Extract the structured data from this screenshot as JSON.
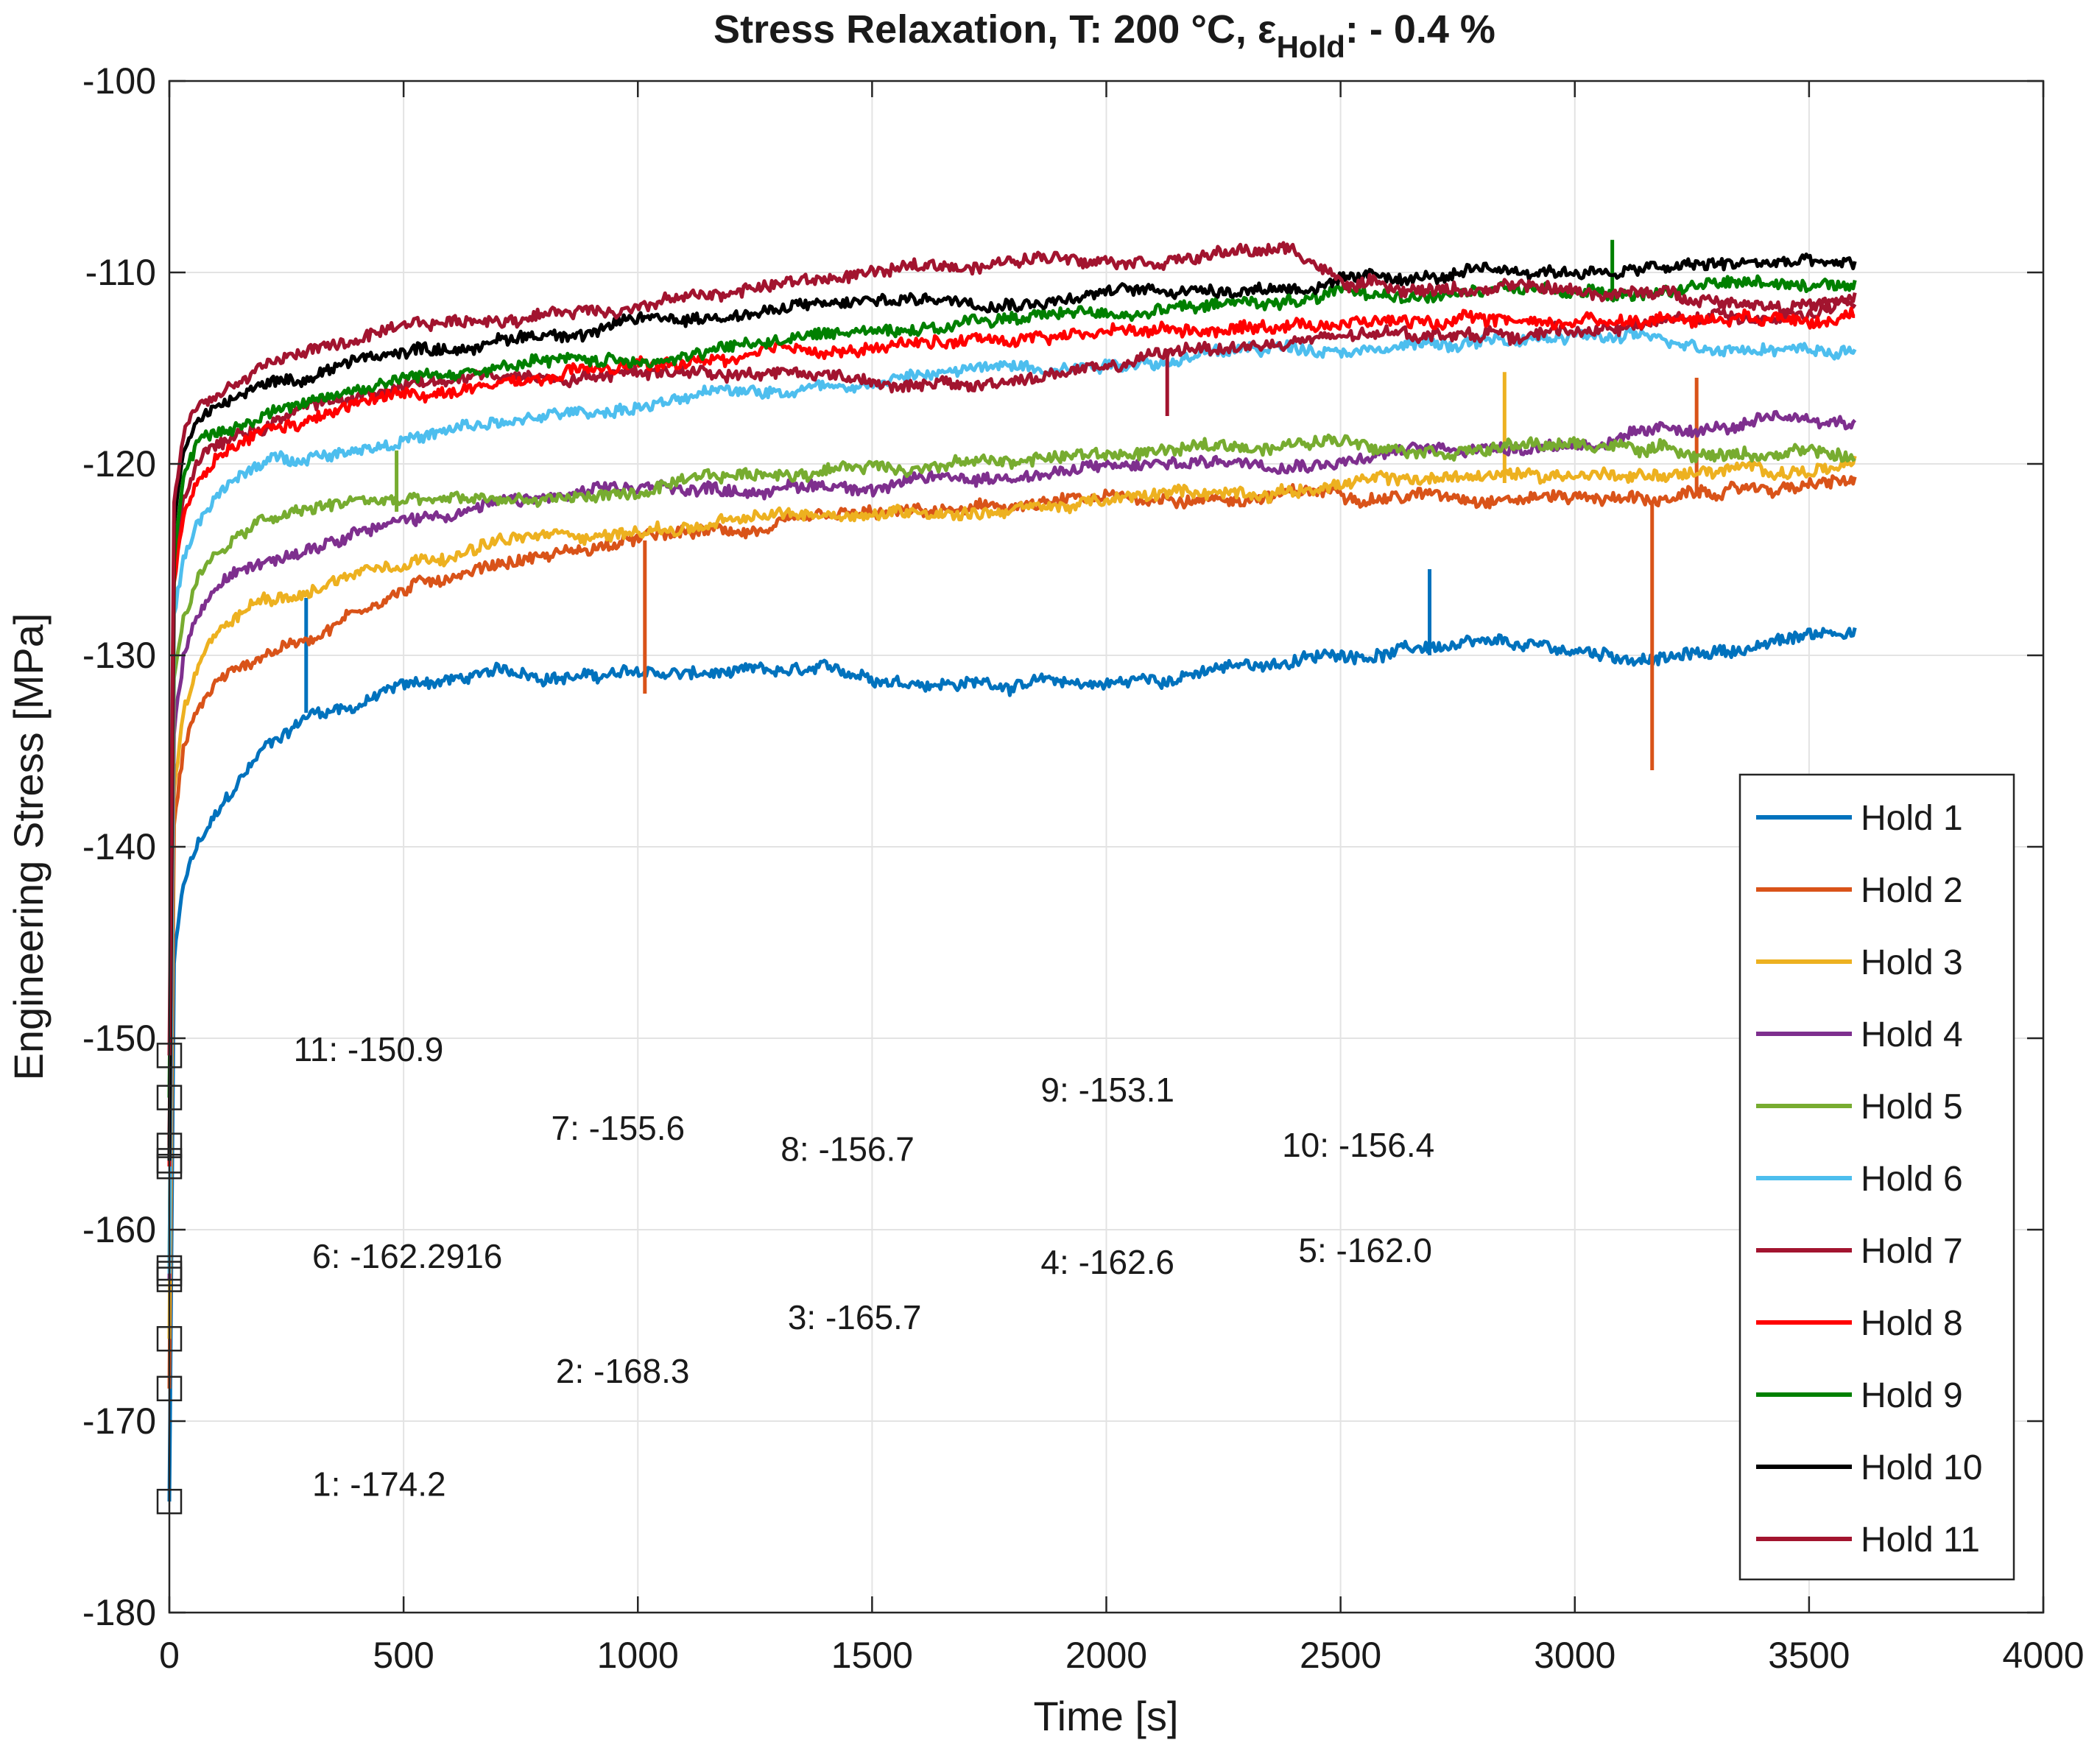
{
  "chart_data": {
    "type": "line",
    "title_main": "Stress Relaxation, T: 200 °C, ε",
    "title_sub": "Hold",
    "title_suffix": ": - 0.4 %",
    "xlabel": "Time [s]",
    "ylabel": "Engineering Stress [MPa]",
    "xlim": [
      0,
      4000
    ],
    "ylim": [
      -180,
      -100
    ],
    "xticks": [
      "0",
      "500",
      "1000",
      "1500",
      "2000",
      "2500",
      "3000",
      "3500",
      "4000"
    ],
    "yticks": [
      "-180",
      "-170",
      "-160",
      "-150",
      "-140",
      "-130",
      "-120",
      "-110",
      "-100"
    ],
    "grid": true,
    "legend_position": "bottom-right",
    "series": [
      {
        "name": "Hold 1",
        "color": "#0072BD",
        "start": -174.2,
        "x": [
          0,
          10,
          30,
          60,
          100,
          200,
          300,
          400,
          500,
          700,
          1000,
          1500,
          2000,
          2500,
          2700,
          3000,
          3200,
          3400,
          3600
        ],
        "y": [
          -174.2,
          -146,
          -142,
          -140,
          -138.5,
          -135,
          -133,
          -132.5,
          -131.5,
          -131,
          -131,
          -131.2,
          -131.5,
          -130,
          -129.5,
          -130,
          -130.2,
          -129.5,
          -128.5
        ],
        "spikes": [
          [
            292,
            -127,
            -133
          ],
          [
            2690,
            -125.5,
            -130
          ]
        ]
      },
      {
        "name": "Hold 2",
        "color": "#D95319",
        "start": -168.3,
        "x": [
          0,
          10,
          30,
          60,
          100,
          200,
          300,
          400,
          500,
          700,
          1000,
          1500,
          2000,
          2500,
          3000,
          3200,
          3400,
          3600
        ],
        "y": [
          -168.3,
          -139,
          -135,
          -133,
          -131.5,
          -130,
          -129,
          -127.5,
          -126.5,
          -125,
          -124,
          -123,
          -122,
          -121.5,
          -121.5,
          -121.8,
          -121.3,
          -121
        ],
        "spikes": [
          [
            1015,
            -124,
            -132
          ],
          [
            3165,
            -122,
            -136
          ],
          [
            3260,
            -115.5,
            -121.5
          ]
        ]
      },
      {
        "name": "Hold 3",
        "color": "#EDB120",
        "start": -165.7,
        "x": [
          0,
          10,
          30,
          60,
          100,
          200,
          300,
          400,
          500,
          700,
          1000,
          1500,
          2000,
          2500,
          3000,
          3500,
          3600
        ],
        "y": [
          -165.7,
          -137,
          -133,
          -131,
          -129,
          -127,
          -126.5,
          -125.5,
          -124.8,
          -124,
          -123.5,
          -122.5,
          -122,
          -121,
          -120.5,
          -120.3,
          -120.2
        ],
        "spikes": [
          [
            2850,
            -115.2,
            -121
          ]
        ]
      },
      {
        "name": "Hold 4",
        "color": "#7E2F8E",
        "start": -162.6,
        "x": [
          0,
          10,
          30,
          60,
          100,
          200,
          300,
          400,
          500,
          700,
          1000,
          1500,
          2000,
          2500,
          3000,
          3500,
          3600
        ],
        "y": [
          -162.6,
          -134,
          -130,
          -128,
          -126.5,
          -125,
          -124,
          -123,
          -122.8,
          -122,
          -121.5,
          -121,
          -120.2,
          -119.5,
          -118.8,
          -117.8,
          -118
        ]
      },
      {
        "name": "Hold 5",
        "color": "#77AC30",
        "start": -162.0,
        "x": [
          0,
          10,
          30,
          60,
          100,
          200,
          300,
          400,
          500,
          700,
          1000,
          1500,
          2000,
          2500,
          3000,
          3500,
          3600
        ],
        "y": [
          -162.0,
          -131,
          -128,
          -126,
          -124.5,
          -123,
          -122.5,
          -122,
          -122,
          -122,
          -121.5,
          -120,
          -119.5,
          -118.8,
          -119,
          -119.5,
          -119.8
        ],
        "spikes": [
          [
            485,
            -119.3,
            -122.5
          ]
        ]
      },
      {
        "name": "Hold 6",
        "color": "#4DBEEE",
        "start": -162.2916,
        "x": [
          0,
          10,
          30,
          60,
          100,
          200,
          300,
          400,
          500,
          700,
          1000,
          1500,
          2000,
          2500,
          3000,
          3500,
          3600
        ],
        "y": [
          -162.2916,
          -128,
          -125,
          -123,
          -121.5,
          -120,
          -119.5,
          -119,
          -118.5,
          -118,
          -117,
          -115.5,
          -114.5,
          -113.8,
          -113.5,
          -113.8,
          -114
        ]
      },
      {
        "name": "Hold 7",
        "color": "#A2142F",
        "start": -155.6,
        "x": [
          0,
          10,
          30,
          60,
          100,
          200,
          300,
          400,
          500,
          700,
          1000,
          1300,
          1500,
          1700,
          2000,
          2200,
          2500,
          3000,
          3500,
          3600
        ],
        "y": [
          -155.6,
          -125,
          -122,
          -120,
          -119,
          -118,
          -117,
          -116.5,
          -116,
          -115.5,
          -115,
          -115,
          -115.5,
          -116,
          -115,
          -114,
          -113.5,
          -113,
          -112,
          -111.5
        ],
        "spikes": [
          [
            2130,
            -114,
            -117.5
          ]
        ]
      },
      {
        "name": "Hold 8",
        "color": "#FF0000",
        "start": -156.7,
        "x": [
          0,
          10,
          30,
          60,
          100,
          200,
          300,
          400,
          500,
          700,
          1000,
          1500,
          2000,
          2500,
          3000,
          3500,
          3600
        ],
        "y": [
          -156.7,
          -126,
          -123,
          -121,
          -120,
          -118.5,
          -118,
          -117,
          -116.5,
          -116,
          -115,
          -114,
          -113,
          -112.5,
          -112.5,
          -112,
          -111.8
        ]
      },
      {
        "name": "Hold 9",
        "color": "#008000",
        "start": -153.1,
        "x": [
          0,
          10,
          30,
          60,
          100,
          200,
          300,
          400,
          500,
          700,
          1000,
          1500,
          2000,
          2500,
          3000,
          3500,
          3600
        ],
        "y": [
          -153.1,
          -125,
          -121,
          -119,
          -118.5,
          -117.5,
          -116.5,
          -116,
          -115.5,
          -115,
          -114.5,
          -113,
          -112,
          -111.3,
          -111,
          -110.5,
          -110.5
        ],
        "spikes": [
          [
            3080,
            -108.3,
            -111.5
          ]
        ]
      },
      {
        "name": "Hold 10",
        "color": "#000000",
        "start": -156.4,
        "x": [
          0,
          10,
          30,
          60,
          100,
          200,
          300,
          400,
          500,
          700,
          1000,
          1500,
          2000,
          2500,
          3000,
          3500,
          3600
        ],
        "y": [
          -156.4,
          -123,
          -119.5,
          -117.5,
          -117,
          -116,
          -115.5,
          -114.5,
          -114,
          -113.5,
          -112.5,
          -111.5,
          -111,
          -110.5,
          -110,
          -109.5,
          -109.8
        ]
      },
      {
        "name": "Hold 11",
        "color": "#A2142F",
        "start": -150.9,
        "x": [
          0,
          10,
          30,
          60,
          100,
          200,
          300,
          400,
          500,
          700,
          1000,
          1500,
          2000,
          2400,
          2500,
          3000,
          3500,
          3600
        ],
        "y": [
          -150.9,
          -122,
          -118.5,
          -117,
          -116.5,
          -114.8,
          -114,
          -113.5,
          -113.2,
          -112.5,
          -111.5,
          -110,
          -109,
          -108.8,
          -110.5,
          -111,
          -111.5,
          -111.5
        ]
      }
    ],
    "annotations": [
      {
        "text": "11: -150.9",
        "x": 265,
        "y": -151.2
      },
      {
        "text": "7: -155.6",
        "x": 815,
        "y": -155.3
      },
      {
        "text": "8: -156.7",
        "x": 1305,
        "y": -156.4
      },
      {
        "text": "9: -153.1",
        "x": 1860,
        "y": -153.3
      },
      {
        "text": "10: -156.4",
        "x": 2375,
        "y": -156.2
      },
      {
        "text": "6: -162.2916",
        "x": 305,
        "y": -162.0
      },
      {
        "text": "4: -162.6",
        "x": 1860,
        "y": -162.3
      },
      {
        "text": "5: -162.0",
        "x": 2410,
        "y": -161.7
      },
      {
        "text": "3: -165.7",
        "x": 1320,
        "y": -165.2
      },
      {
        "text": "2: -168.3",
        "x": 825,
        "y": -168.0
      },
      {
        "text": "1: -174.2",
        "x": 305,
        "y": -173.9
      }
    ]
  }
}
